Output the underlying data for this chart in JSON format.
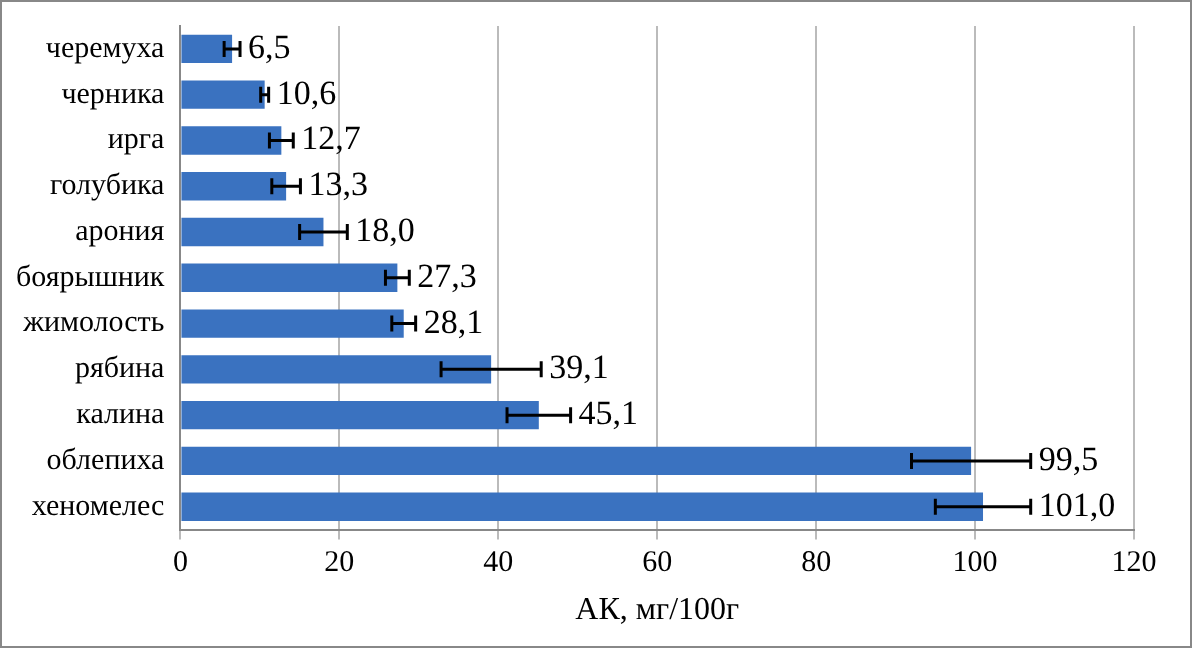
{
  "chart_data": {
    "type": "bar",
    "orientation": "horizontal",
    "xlabel": "АК, мг/100г",
    "categories": [
      "черемуха",
      "черника",
      "ирга",
      "голубика",
      "арония",
      "боярышник",
      "жимолость",
      "рябина",
      "калина",
      "облепиха",
      "хеномелес"
    ],
    "values": [
      6.5,
      10.6,
      12.7,
      13.3,
      18.0,
      27.3,
      28.1,
      39.1,
      45.1,
      99.5,
      101.0
    ],
    "value_labels": [
      "6,5",
      "10,6",
      "12,7",
      "13,3",
      "18,0",
      "27,3",
      "28,1",
      "39,1",
      "45,1",
      "99,5",
      "101,0"
    ],
    "errors": [
      1,
      0.5,
      1.5,
      1.8,
      3,
      1.5,
      1.5,
      6.3,
      4,
      7.5,
      6
    ],
    "color": "#3a72c0",
    "xlim": [
      0,
      120
    ],
    "xticks": [
      0,
      20,
      40,
      60,
      80,
      100,
      120
    ],
    "grid": "x",
    "legend": false
  }
}
